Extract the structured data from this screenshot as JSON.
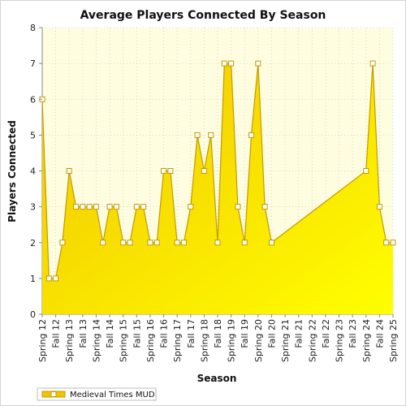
{
  "chart_data": {
    "type": "area",
    "title": "Average Players Connected By Season",
    "xlabel": "Season",
    "ylabel": "Players Connected",
    "ylim": [
      0,
      8
    ],
    "yticks": [
      0,
      1,
      2,
      3,
      4,
      5,
      6,
      7,
      8
    ],
    "grid": true,
    "legend_position": "bottom-left",
    "colors": {
      "fill_top": "#f2c400",
      "fill_bottom": "#ffff00",
      "line": "#c49a00",
      "plot_background": "#fefde0",
      "marker_fill": "#ffffff"
    },
    "x_labels": [
      "Spring 12",
      "Fall 12",
      "Spring 13",
      "Fall 13",
      "Spring 14",
      "Fall 14",
      "Spring 15",
      "Fall 15",
      "Spring 16",
      "Fall 16",
      "Spring 17",
      "Fall 17",
      "Spring 18",
      "Fall 18",
      "Spring 19",
      "Fall 19",
      "Spring 20",
      "Fall 20",
      "Spring 21",
      "Fall 21",
      "Spring 22",
      "Fall 22",
      "Spring 23",
      "Fall 23",
      "Spring 24",
      "Fall 24",
      "Spring 25"
    ],
    "series": [
      {
        "name": "Medieval Times MUD",
        "points": [
          [
            0,
            6
          ],
          [
            0.5,
            1
          ],
          [
            1,
            1
          ],
          [
            1.5,
            2
          ],
          [
            2,
            4
          ],
          [
            2.5,
            3
          ],
          [
            3,
            3
          ],
          [
            3.5,
            3
          ],
          [
            4,
            3
          ],
          [
            4.5,
            2
          ],
          [
            5,
            3
          ],
          [
            5.5,
            3
          ],
          [
            6,
            2
          ],
          [
            6.5,
            2
          ],
          [
            7,
            3
          ],
          [
            7.5,
            3
          ],
          [
            8,
            2
          ],
          [
            8.5,
            2
          ],
          [
            9,
            4
          ],
          [
            9.5,
            4
          ],
          [
            10,
            2
          ],
          [
            10.5,
            2
          ],
          [
            11,
            3
          ],
          [
            11.5,
            5
          ],
          [
            12,
            4
          ],
          [
            12.5,
            5
          ],
          [
            13,
            2
          ],
          [
            13.5,
            7
          ],
          [
            14,
            7
          ],
          [
            14.5,
            3
          ],
          [
            15,
            2
          ],
          [
            15.5,
            5
          ],
          [
            16,
            7
          ],
          [
            16.5,
            3
          ],
          [
            17,
            2
          ],
          [
            24,
            4
          ],
          [
            24.5,
            7
          ],
          [
            25,
            3
          ],
          [
            25.5,
            2
          ],
          [
            26,
            2
          ]
        ]
      }
    ]
  }
}
